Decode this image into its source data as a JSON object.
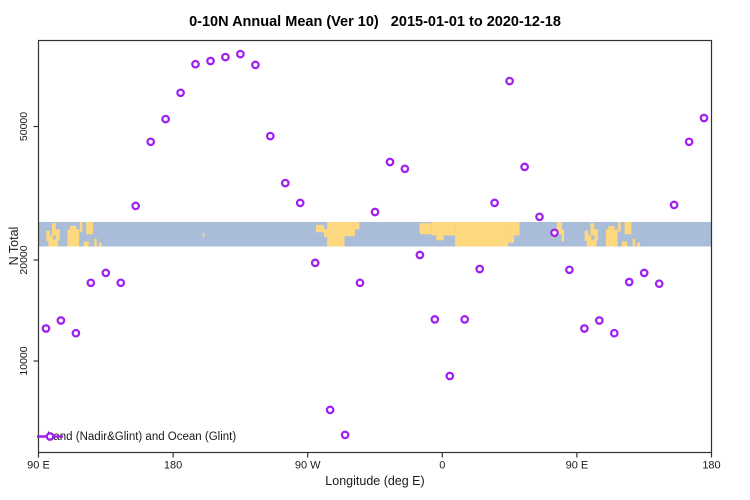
{
  "title": "0-10N Annual Mean (Ver 10)   2015-01-01 to 2020-12-18",
  "axes": {
    "x_label": "Longitude (deg E)",
    "y_label": "N Total",
    "x_ticks": [
      {
        "lon": 90,
        "label": "90 E"
      },
      {
        "lon": 180,
        "label": "180"
      },
      {
        "lon": 270,
        "label": "90 W"
      },
      {
        "lon": 360,
        "label": "0"
      },
      {
        "lon": 450,
        "label": "90 E"
      },
      {
        "lon": 540,
        "label": "180"
      }
    ],
    "y_ticks": [
      {
        "value": 10000,
        "label": "10000"
      },
      {
        "value": 20000,
        "label": "20000"
      },
      {
        "value": 50000,
        "label": "50000"
      }
    ]
  },
  "legend": {
    "label": "Land (Nadir&Glint) and Ocean (Glint)"
  },
  "colors": {
    "point": "#A020F0",
    "point_fill": "#ffffff",
    "ocean": "#A9BDD9",
    "land": "#FDD87E",
    "axis": "#333333",
    "text": "#1a1a1a"
  },
  "map_band": {
    "value_range": [
      22000,
      26000
    ],
    "land_segments": [
      {
        "lon": [
          95.2,
          97.6
        ],
        "v": [
          0.35,
          0.78
        ],
        "repeat": true
      },
      {
        "lon": [
          96.6,
          99.6
        ],
        "v": [
          0.55,
          1.0
        ],
        "repeat": true
      },
      {
        "lon": [
          98.6,
          103.2
        ],
        "v": [
          0.72,
          1.0
        ],
        "repeat": true
      },
      {
        "lon": [
          99.0,
          101.6
        ],
        "v": [
          0.05,
          0.55
        ],
        "repeat": true
      },
      {
        "lon": [
          101.6,
          104.2
        ],
        "v": [
          0.3,
          0.75
        ],
        "repeat": true
      },
      {
        "lon": [
          109.4,
          117.2
        ],
        "v": [
          0.3,
          1.0
        ],
        "repeat": true
      },
      {
        "lon": [
          111.0,
          115.2
        ],
        "v": [
          0.16,
          0.34
        ],
        "repeat": true
      },
      {
        "lon": [
          117.6,
          119.3
        ],
        "v": [
          0.0,
          0.4
        ],
        "repeat": true
      },
      {
        "lon": [
          121.9,
          126.4
        ],
        "v": [
          0.0,
          0.5
        ],
        "repeat": true
      },
      {
        "lon": [
          120.2,
          123.6
        ],
        "v": [
          0.8,
          1.0
        ],
        "repeat": true
      },
      {
        "lon": [
          127.3,
          128.9
        ],
        "v": [
          0.68,
          1.0
        ],
        "repeat": true
      },
      {
        "lon": [
          130.4,
          132.2
        ],
        "v": [
          0.84,
          1.0
        ],
        "repeat": true
      },
      {
        "lon": [
          199.8,
          200.9
        ],
        "v": [
          0.45,
          0.62
        ],
        "repeat": false
      },
      {
        "lon": [
          275.6,
          281.0
        ],
        "v": [
          0.12,
          0.42
        ],
        "repeat": false
      },
      {
        "lon": [
          280.8,
          283.4
        ],
        "v": [
          0.28,
          0.62
        ],
        "repeat": false
      },
      {
        "lon": [
          283.0,
          294.6
        ],
        "v": [
          0.0,
          1.0
        ],
        "repeat": false
      },
      {
        "lon": [
          294.6,
          301.6
        ],
        "v": [
          0.0,
          0.58
        ],
        "repeat": false
      },
      {
        "lon": [
          301.6,
          304.6
        ],
        "v": [
          0.0,
          0.3
        ],
        "repeat": false
      },
      {
        "lon": [
          344.8,
          352.6
        ],
        "v": [
          0.05,
          0.5
        ],
        "repeat": false
      },
      {
        "lon": [
          352.6,
          368.6
        ],
        "v": [
          0.0,
          0.55
        ],
        "repeat": false
      },
      {
        "lon": [
          356.0,
          361.0
        ],
        "v": [
          0.55,
          0.75
        ],
        "repeat": false
      },
      {
        "lon": [
          368.6,
          404.0
        ],
        "v": [
          0.0,
          1.0
        ],
        "repeat": false
      },
      {
        "lon": [
          404.0,
          411.6
        ],
        "v": [
          0.0,
          0.55
        ],
        "repeat": false
      },
      {
        "lon": [
          404.0,
          408.0
        ],
        "v": [
          0.55,
          0.85
        ],
        "repeat": false
      },
      {
        "lon": [
          433.2,
          434.0
        ],
        "v": [
          0.45,
          0.65
        ],
        "repeat": false
      },
      {
        "lon": [
          436.5,
          440.0
        ],
        "v": [
          0.0,
          0.5
        ],
        "repeat": false
      },
      {
        "lon": [
          439.7,
          441.4
        ],
        "v": [
          0.3,
          0.8
        ],
        "repeat": false
      }
    ]
  },
  "chart_data": {
    "type": "scatter",
    "title": "0-10N Annual Mean (Ver 10)   2015-01-01 to 2020-12-18",
    "xlabel": "Longitude (deg E)",
    "ylabel": "N Total",
    "series_name": "Land (Nadir&Glint) and Ocean (Glint)",
    "marker": "open-circle",
    "x_axis": {
      "type": "linear",
      "plot_lon_range": [
        90,
        540
      ],
      "tick_labels": [
        "90 E",
        "180",
        "90 W",
        "0",
        "90 E",
        "180"
      ],
      "note": "longitude wraps eastward: 90E>180>90W>0>90E>180"
    },
    "y_axis": {
      "type": "log",
      "range": [
        5300,
        92000
      ],
      "ticks": [
        10000,
        20000,
        50000
      ]
    },
    "grid": false,
    "legend_position": "bottom-left",
    "points": [
      {
        "lon_plot": 95,
        "lon_label": "95E",
        "value": 12500
      },
      {
        "lon_plot": 105,
        "lon_label": "105E",
        "value": 13200
      },
      {
        "lon_plot": 115,
        "lon_label": "115E",
        "value": 12100
      },
      {
        "lon_plot": 125,
        "lon_label": "125E",
        "value": 17100
      },
      {
        "lon_plot": 135,
        "lon_label": "135E",
        "value": 18300
      },
      {
        "lon_plot": 145,
        "lon_label": "145E",
        "value": 17100
      },
      {
        "lon_plot": 155,
        "lon_label": "155E",
        "value": 29000
      },
      {
        "lon_plot": 165,
        "lon_label": "165E",
        "value": 45000
      },
      {
        "lon_plot": 175,
        "lon_label": "175E",
        "value": 52600
      },
      {
        "lon_plot": 185,
        "lon_label": "175W",
        "value": 63000
      },
      {
        "lon_plot": 195,
        "lon_label": "165W",
        "value": 76700
      },
      {
        "lon_plot": 205,
        "lon_label": "155W",
        "value": 78400
      },
      {
        "lon_plot": 215,
        "lon_label": "145W",
        "value": 80500
      },
      {
        "lon_plot": 225,
        "lon_label": "135W",
        "value": 82200
      },
      {
        "lon_plot": 235,
        "lon_label": "125W",
        "value": 76300
      },
      {
        "lon_plot": 245,
        "lon_label": "115W",
        "value": 46800
      },
      {
        "lon_plot": 255,
        "lon_label": "105W",
        "value": 33900
      },
      {
        "lon_plot": 265,
        "lon_label": "95W",
        "value": 29600
      },
      {
        "lon_plot": 275,
        "lon_label": "85W",
        "value": 19600
      },
      {
        "lon_plot": 285,
        "lon_label": "75W",
        "value": 7150
      },
      {
        "lon_plot": 295,
        "lon_label": "65W",
        "value": 6020
      },
      {
        "lon_plot": 305,
        "lon_label": "55W",
        "value": 17100
      },
      {
        "lon_plot": 315,
        "lon_label": "45W",
        "value": 27800
      },
      {
        "lon_plot": 325,
        "lon_label": "35W",
        "value": 39200
      },
      {
        "lon_plot": 335,
        "lon_label": "25W",
        "value": 37400
      },
      {
        "lon_plot": 345,
        "lon_label": "15W",
        "value": 20700
      },
      {
        "lon_plot": 355,
        "lon_label": "5W",
        "value": 13300
      },
      {
        "lon_plot": 365,
        "lon_label": "5E",
        "value": 9020
      },
      {
        "lon_plot": 375,
        "lon_label": "15E",
        "value": 13300
      },
      {
        "lon_plot": 385,
        "lon_label": "25E",
        "value": 18800
      },
      {
        "lon_plot": 395,
        "lon_label": "35E",
        "value": 29600
      },
      {
        "lon_plot": 405,
        "lon_label": "45E",
        "value": 68300
      },
      {
        "lon_plot": 415,
        "lon_label": "55E",
        "value": 37900
      },
      {
        "lon_plot": 425,
        "lon_label": "65E",
        "value": 26900
      },
      {
        "lon_plot": 435,
        "lon_label": "75E",
        "value": 24100
      },
      {
        "lon_plot": 445,
        "lon_label": "85E",
        "value": 18700
      },
      {
        "lon_plot": 455,
        "lon_label": "95E",
        "value": 12500
      },
      {
        "lon_plot": 465,
        "lon_label": "105E",
        "value": 13200
      },
      {
        "lon_plot": 475,
        "lon_label": "115E",
        "value": 12100
      },
      {
        "lon_plot": 485,
        "lon_label": "125E",
        "value": 17200
      },
      {
        "lon_plot": 495,
        "lon_label": "135E",
        "value": 18300
      },
      {
        "lon_plot": 505,
        "lon_label": "145E",
        "value": 17000
      },
      {
        "lon_plot": 515,
        "lon_label": "155E",
        "value": 29200
      },
      {
        "lon_plot": 525,
        "lon_label": "165E",
        "value": 45000
      },
      {
        "lon_plot": 535,
        "lon_label": "175E",
        "value": 53000
      }
    ]
  }
}
